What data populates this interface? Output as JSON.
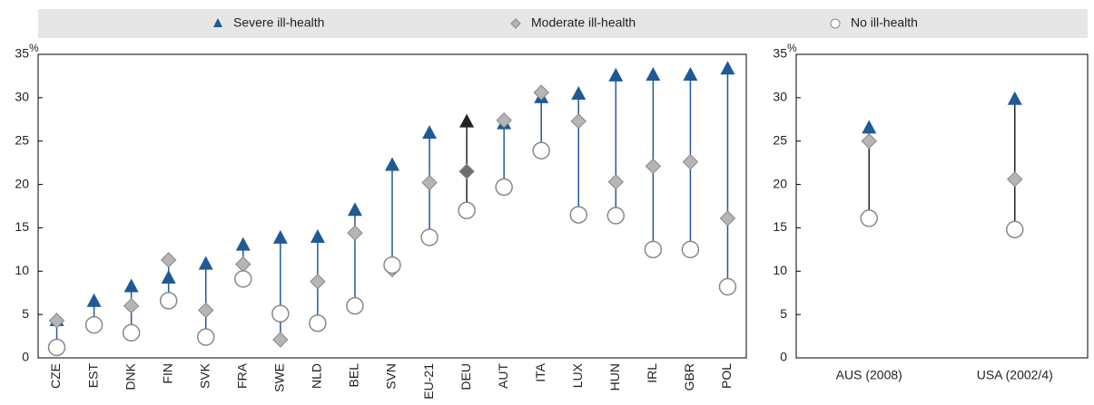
{
  "chart_data": [
    {
      "type": "dot-range",
      "ylabel": "%",
      "categories": [
        "CZE",
        "EST",
        "DNK",
        "FIN",
        "SVK",
        "FRA",
        "SWE",
        "NLD",
        "BEL",
        "SVN",
        "EU-21",
        "DEU",
        "AUT",
        "ITA",
        "LUX",
        "HUN",
        "IRL",
        "GBR",
        "POL"
      ],
      "series": [
        {
          "name": "Severe ill-health",
          "color": "#1f5a96",
          "highlight_color": "#222222",
          "marker": "triangle",
          "values": [
            4.3,
            6.5,
            8.2,
            9.2,
            10.8,
            13.0,
            13.8,
            13.9,
            17.0,
            22.2,
            25.9,
            27.2,
            27.0,
            30.0,
            30.4,
            32.5,
            32.6,
            32.6,
            33.3
          ]
        },
        {
          "name": "Moderate ill-health",
          "color": "#b5b5b5",
          "highlight_color": "#6e6e6e",
          "marker": "diamond",
          "values": [
            4.3,
            null,
            6.0,
            11.3,
            5.5,
            10.8,
            2.1,
            8.8,
            14.4,
            10.2,
            20.2,
            21.5,
            27.4,
            30.6,
            27.3,
            20.3,
            22.1,
            22.6,
            16.1
          ]
        },
        {
          "name": "No ill-health",
          "color": "#ffffff",
          "highlight_color": "#ffffff",
          "marker": "circle",
          "values": [
            1.2,
            3.8,
            2.9,
            6.6,
            2.4,
            9.1,
            5.1,
            4.0,
            6.0,
            10.7,
            13.9,
            17.0,
            19.7,
            23.9,
            16.5,
            16.4,
            12.5,
            12.5,
            8.2
          ]
        }
      ],
      "highlight_category": "DEU",
      "line_color": "#1f5a96",
      "ylim": [
        0,
        35
      ],
      "yticks": [
        0,
        5,
        10,
        15,
        20,
        25,
        30,
        35
      ]
    },
    {
      "type": "dot-range",
      "ylabel": "%",
      "categories": [
        "AUS (2008)",
        "USA (2002/4)"
      ],
      "series": [
        {
          "color": "#1f5a96",
          "marker": "triangle",
          "values": [
            26.5,
            29.8
          ]
        },
        {
          "color": "#b5b5b5",
          "marker": "diamond",
          "values": [
            25.0,
            20.6
          ]
        },
        {
          "color": "#ffffff",
          "marker": "circle",
          "values": [
            16.1,
            14.8
          ]
        }
      ],
      "line_color": "#222222",
      "ylim": [
        0,
        35
      ],
      "yticks": [
        0,
        5,
        10,
        15,
        20,
        25,
        30,
        35
      ]
    }
  ]
}
